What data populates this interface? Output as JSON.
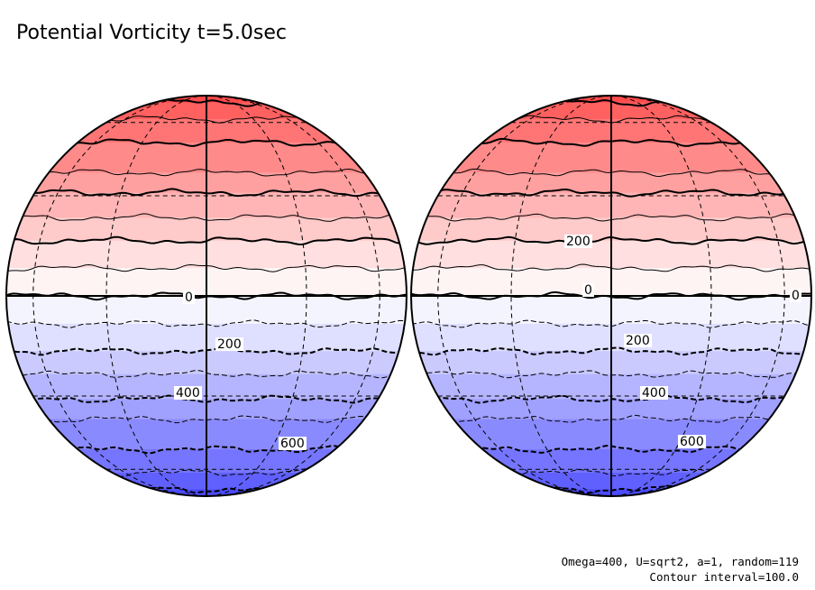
{
  "title": "Potential Vorticity  t=5.0sec",
  "footer": {
    "params": "Omega=400, U=sqrt2, a=1, random=119",
    "contour_interval": "Contour interval=100.0"
  },
  "colors": {
    "positive_max": "#ff4040",
    "zero": "#ffffff",
    "negative_max": "#4040ff",
    "contour_line": "#000000"
  },
  "chart_data": {
    "type": "heatmap",
    "projection": "orthographic globe (two hemispheres side by side)",
    "field": "Potential Vorticity",
    "time": "t=5.0sec",
    "contour_interval": 100.0,
    "color_range": [
      -900,
      900
    ],
    "bands": [
      {
        "latitude": 90,
        "value": 900
      },
      {
        "latitude": 75,
        "value": 800
      },
      {
        "latitude": 62,
        "value": 700
      },
      {
        "latitude": 50,
        "value": 600
      },
      {
        "latitude": 38,
        "value": 500
      },
      {
        "latitude": 31,
        "value": 400
      },
      {
        "latitude": 23,
        "value": 300
      },
      {
        "latitude": 16,
        "value": 200
      },
      {
        "latitude": 8,
        "value": 100
      },
      {
        "latitude": 0,
        "value": 0
      },
      {
        "latitude": -8,
        "value": -100
      },
      {
        "latitude": -16,
        "value": -200
      },
      {
        "latitude": -23,
        "value": -300
      },
      {
        "latitude": -31,
        "value": -400
      },
      {
        "latitude": -38,
        "value": -500
      },
      {
        "latitude": -50,
        "value": -600
      },
      {
        "latitude": -62,
        "value": -700
      },
      {
        "latitude": -75,
        "value": -800
      },
      {
        "latitude": -90,
        "value": -900
      }
    ],
    "contour_labels": [
      {
        "globe": "left",
        "text": "0"
      },
      {
        "globe": "left",
        "text": "200"
      },
      {
        "globe": "left",
        "text": "400"
      },
      {
        "globe": "left",
        "text": "600"
      },
      {
        "globe": "right",
        "text": "200"
      },
      {
        "globe": "right",
        "text": "0"
      },
      {
        "globe": "right",
        "text": "0"
      },
      {
        "globe": "right",
        "text": "200"
      },
      {
        "globe": "right",
        "text": "400"
      },
      {
        "globe": "right",
        "text": "600"
      }
    ],
    "grid": true
  }
}
